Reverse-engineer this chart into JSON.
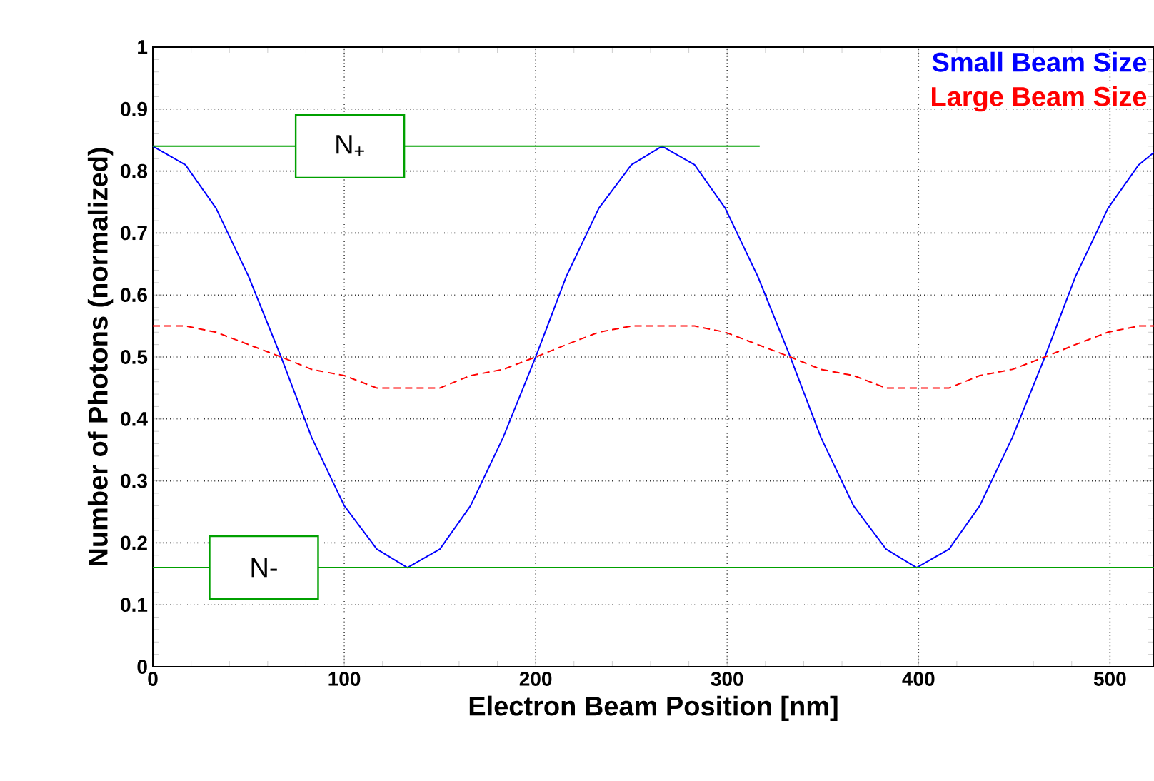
{
  "chart_data": {
    "type": "line",
    "xlabel": "Electron Beam Position [nm]",
    "ylabel": "Number of Photons (normalized)",
    "xlim": [
      0,
      523
    ],
    "ylim": [
      0,
      1
    ],
    "xticks": [
      0,
      100,
      200,
      300,
      400,
      500
    ],
    "yticks": [
      0,
      0.1,
      0.2,
      0.3,
      0.4,
      0.5,
      0.6,
      0.7,
      0.8,
      0.9,
      1
    ],
    "grid": true,
    "legend": "top right",
    "marker": "none",
    "series": [
      {
        "name": "Small Beam Size",
        "color": "#0000ff",
        "line_style": "solid",
        "x": [
          0,
          17,
          33,
          50,
          67,
          83,
          100,
          117,
          133,
          150,
          166,
          183,
          200,
          216,
          233,
          250,
          266,
          283,
          299,
          316,
          333,
          349,
          366,
          383,
          399,
          416,
          432,
          449,
          466,
          482,
          499,
          515,
          523
        ],
        "values": [
          0.84,
          0.81,
          0.74,
          0.63,
          0.5,
          0.37,
          0.26,
          0.19,
          0.16,
          0.19,
          0.26,
          0.37,
          0.5,
          0.63,
          0.74,
          0.81,
          0.84,
          0.81,
          0.74,
          0.63,
          0.5,
          0.37,
          0.26,
          0.19,
          0.16,
          0.19,
          0.26,
          0.37,
          0.5,
          0.63,
          0.74,
          0.81,
          0.83
        ]
      },
      {
        "name": "Large Beam Size",
        "color": "#ff0000",
        "line_style": "dashed",
        "x": [
          0,
          17,
          33,
          50,
          67,
          83,
          100,
          117,
          133,
          150,
          166,
          183,
          200,
          216,
          233,
          250,
          266,
          283,
          299,
          316,
          333,
          349,
          366,
          383,
          399,
          416,
          432,
          449,
          466,
          482,
          499,
          515,
          523
        ],
        "values": [
          0.55,
          0.55,
          0.54,
          0.52,
          0.5,
          0.48,
          0.47,
          0.45,
          0.45,
          0.45,
          0.47,
          0.48,
          0.5,
          0.52,
          0.54,
          0.55,
          0.55,
          0.55,
          0.54,
          0.52,
          0.5,
          0.48,
          0.47,
          0.45,
          0.45,
          0.45,
          0.47,
          0.48,
          0.5,
          0.52,
          0.54,
          0.55,
          0.55
        ]
      },
      {
        "color": "#00a000",
        "line_style": "solid",
        "x": [
          0,
          317
        ],
        "values": [
          0.84,
          0.84
        ]
      },
      {
        "color": "#00a000",
        "line_style": "solid",
        "x": [
          0,
          523
        ],
        "values": [
          0.16,
          0.16
        ]
      }
    ],
    "annotations": [
      {
        "text": "N$_{+}$",
        "x": 103,
        "y": 0.84
      },
      {
        "text": "N-",
        "x": 58,
        "y": 0.16
      }
    ]
  }
}
